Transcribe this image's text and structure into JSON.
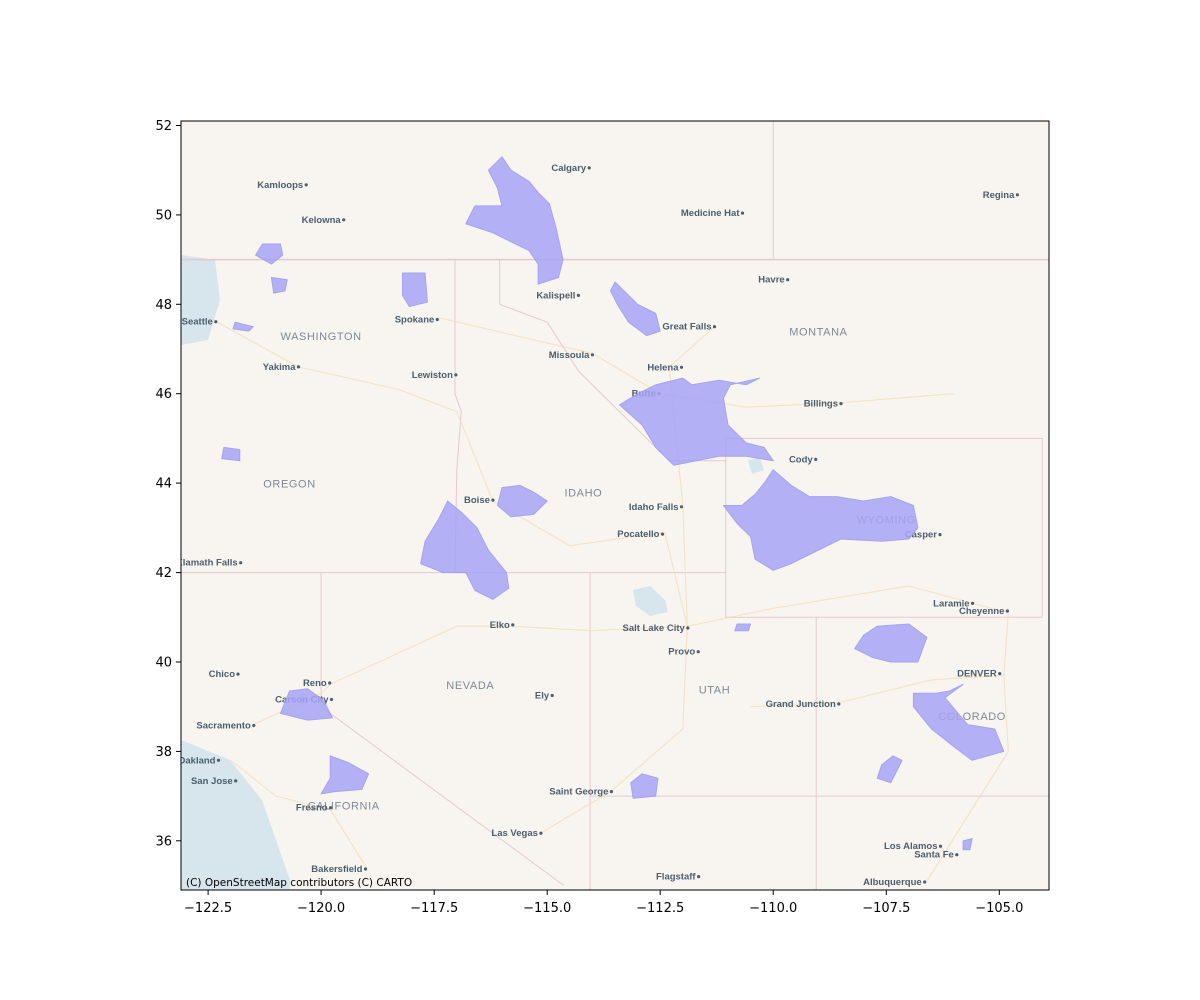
{
  "map": {
    "basemap": "CARTO Voyager (light)",
    "attribution": "(C) OpenStreetMap contributors (C) CARTO",
    "extent": {
      "lon": [
        -123.1,
        -103.9
      ],
      "lat": [
        34.9,
        52.1
      ]
    },
    "colors": {
      "land": "#f8f5f0",
      "water": "#d6e6ec",
      "border": "#e6c9cf",
      "road": "#f4dcb5",
      "polygon_fill": "#a7a5f6",
      "polygon_stroke": "#9896ee",
      "city_dot": "#4b5d6e"
    },
    "x_ticks": [
      {
        "value": -122.5,
        "label": "−122.5"
      },
      {
        "value": -120.0,
        "label": "−120.0"
      },
      {
        "value": -117.5,
        "label": "−117.5"
      },
      {
        "value": -115.0,
        "label": "−115.0"
      },
      {
        "value": -112.5,
        "label": "−112.5"
      },
      {
        "value": -110.0,
        "label": "−110.0"
      },
      {
        "value": -107.5,
        "label": "−107.5"
      },
      {
        "value": -105.0,
        "label": "−105.0"
      }
    ],
    "y_ticks": [
      {
        "value": 36,
        "label": "36"
      },
      {
        "value": 38,
        "label": "38"
      },
      {
        "value": 40,
        "label": "40"
      },
      {
        "value": 42,
        "label": "42"
      },
      {
        "value": 44,
        "label": "44"
      },
      {
        "value": 46,
        "label": "46"
      },
      {
        "value": 48,
        "label": "48"
      },
      {
        "value": 50,
        "label": "50"
      },
      {
        "value": 52,
        "label": "52"
      }
    ],
    "regions": [
      {
        "name": "WASHINGTON",
        "lon": -120.0,
        "lat": 47.2
      },
      {
        "name": "OREGON",
        "lon": -120.7,
        "lat": 43.9
      },
      {
        "name": "IDAHO",
        "lon": -114.2,
        "lat": 43.7
      },
      {
        "name": "MONTANA",
        "lon": -109.0,
        "lat": 47.3
      },
      {
        "name": "WYOMING",
        "lon": -107.5,
        "lat": 43.1
      },
      {
        "name": "NEVADA",
        "lon": -116.7,
        "lat": 39.4
      },
      {
        "name": "UTAH",
        "lon": -111.3,
        "lat": 39.3
      },
      {
        "name": "COLORADO",
        "lon": -105.6,
        "lat": 38.7
      },
      {
        "name": "CALIFORNIA",
        "lon": -119.5,
        "lat": 36.7
      }
    ],
    "cities": [
      {
        "name": "Calgary",
        "lon": -114.07,
        "lat": 51.05
      },
      {
        "name": "Kamloops",
        "lon": -120.33,
        "lat": 50.67
      },
      {
        "name": "Kelowna",
        "lon": -119.5,
        "lat": 49.89
      },
      {
        "name": "Medicine Hat",
        "lon": -110.68,
        "lat": 50.04
      },
      {
        "name": "Regina",
        "lon": -104.6,
        "lat": 50.45
      },
      {
        "name": "Havre",
        "lon": -109.68,
        "lat": 48.55
      },
      {
        "name": "Kalispell",
        "lon": -114.31,
        "lat": 48.2
      },
      {
        "name": "Great Falls",
        "lon": -111.3,
        "lat": 47.5
      },
      {
        "name": "Seattle",
        "lon": -122.33,
        "lat": 47.61
      },
      {
        "name": "Spokane",
        "lon": -117.43,
        "lat": 47.66
      },
      {
        "name": "Missoula",
        "lon": -114.0,
        "lat": 46.87
      },
      {
        "name": "Helena",
        "lon": -112.03,
        "lat": 46.59
      },
      {
        "name": "Yakima",
        "lon": -120.5,
        "lat": 46.6
      },
      {
        "name": "Lewiston",
        "lon": -117.02,
        "lat": 46.42
      },
      {
        "name": "Butte",
        "lon": -112.53,
        "lat": 46.0
      },
      {
        "name": "Billings",
        "lon": -108.5,
        "lat": 45.78
      },
      {
        "name": "Cody",
        "lon": -109.06,
        "lat": 44.53
      },
      {
        "name": "Boise",
        "lon": -116.2,
        "lat": 43.62
      },
      {
        "name": "Idaho Falls",
        "lon": -112.03,
        "lat": 43.47
      },
      {
        "name": "Pocatello",
        "lon": -112.45,
        "lat": 42.86
      },
      {
        "name": "Casper",
        "lon": -106.31,
        "lat": 42.85
      },
      {
        "name": "Klamath Falls",
        "lon": -121.78,
        "lat": 42.22
      },
      {
        "name": "Laramie",
        "lon": -105.59,
        "lat": 41.31
      },
      {
        "name": "Cheyenne",
        "lon": -104.82,
        "lat": 41.14
      },
      {
        "name": "Elko",
        "lon": -115.76,
        "lat": 40.83
      },
      {
        "name": "Salt Lake City",
        "lon": -111.89,
        "lat": 40.76
      },
      {
        "name": "Provo",
        "lon": -111.66,
        "lat": 40.23
      },
      {
        "name": "Chico",
        "lon": -121.84,
        "lat": 39.73
      },
      {
        "name": "Reno",
        "lon": -119.81,
        "lat": 39.53
      },
      {
        "name": "Carson City",
        "lon": -119.77,
        "lat": 39.16
      },
      {
        "name": "Ely",
        "lon": -114.89,
        "lat": 39.25
      },
      {
        "name": "DENVER",
        "lon": -104.99,
        "lat": 39.74
      },
      {
        "name": "Grand Junction",
        "lon": -108.55,
        "lat": 39.06
      },
      {
        "name": "Sacramento",
        "lon": -121.49,
        "lat": 38.58
      },
      {
        "name": "Oakland",
        "lon": -122.27,
        "lat": 37.8
      },
      {
        "name": "San Jose",
        "lon": -121.89,
        "lat": 37.34
      },
      {
        "name": "Saint George",
        "lon": -113.58,
        "lat": 37.1
      },
      {
        "name": "Fresno",
        "lon": -119.79,
        "lat": 36.74
      },
      {
        "name": "Las Vegas",
        "lon": -115.14,
        "lat": 36.17
      },
      {
        "name": "Bakersfield",
        "lon": -119.02,
        "lat": 35.37
      },
      {
        "name": "Los Alamos",
        "lon": -106.3,
        "lat": 35.88
      },
      {
        "name": "Santa Fe",
        "lon": -105.94,
        "lat": 35.69
      },
      {
        "name": "Flagstaff",
        "lon": -111.65,
        "lat": 35.2
      },
      {
        "name": "Albuquerque",
        "lon": -106.65,
        "lat": 35.08
      }
    ],
    "polygons": [
      {
        "name": "glacier-region",
        "points": [
          [
            -116.0,
            51.3
          ],
          [
            -115.8,
            51.0
          ],
          [
            -115.4,
            50.75
          ],
          [
            -115.2,
            50.5
          ],
          [
            -114.95,
            50.25
          ],
          [
            -114.8,
            49.7
          ],
          [
            -114.65,
            49.0
          ],
          [
            -114.75,
            48.6
          ],
          [
            -115.2,
            48.45
          ],
          [
            -115.2,
            48.9
          ],
          [
            -115.4,
            49.2
          ],
          [
            -116.2,
            49.6
          ],
          [
            -116.8,
            49.8
          ],
          [
            -116.6,
            50.2
          ],
          [
            -116.0,
            50.2
          ],
          [
            -116.1,
            50.6
          ],
          [
            -116.3,
            51.0
          ]
        ]
      },
      {
        "name": "north-cascades",
        "points": [
          [
            -121.3,
            49.35
          ],
          [
            -120.9,
            49.35
          ],
          [
            -120.85,
            49.1
          ],
          [
            -121.1,
            48.9
          ],
          [
            -121.45,
            49.1
          ]
        ]
      },
      {
        "name": "cascades-small",
        "points": [
          [
            -121.1,
            48.6
          ],
          [
            -120.75,
            48.55
          ],
          [
            -120.8,
            48.3
          ],
          [
            -121.05,
            48.25
          ]
        ]
      },
      {
        "name": "okanogan",
        "points": [
          [
            -118.2,
            48.7
          ],
          [
            -117.7,
            48.7
          ],
          [
            -117.65,
            48.05
          ],
          [
            -118.05,
            47.95
          ],
          [
            -118.2,
            48.2
          ]
        ]
      },
      {
        "name": "rainier",
        "points": [
          [
            -121.9,
            47.6
          ],
          [
            -121.5,
            47.5
          ],
          [
            -121.6,
            47.4
          ],
          [
            -121.95,
            47.45
          ]
        ]
      },
      {
        "name": "bob-marshall",
        "points": [
          [
            -113.5,
            48.5
          ],
          [
            -113.3,
            48.3
          ],
          [
            -113.0,
            48.0
          ],
          [
            -112.6,
            47.8
          ],
          [
            -112.5,
            47.4
          ],
          [
            -112.8,
            47.3
          ],
          [
            -113.2,
            47.6
          ],
          [
            -113.45,
            48.0
          ],
          [
            -113.6,
            48.3
          ]
        ]
      },
      {
        "name": "greater-yellowstone-north",
        "points": [
          [
            -112.6,
            46.2
          ],
          [
            -112.0,
            46.35
          ],
          [
            -111.8,
            46.2
          ],
          [
            -111.2,
            46.3
          ],
          [
            -110.6,
            46.2
          ],
          [
            -110.3,
            46.35
          ],
          [
            -110.95,
            46.2
          ],
          [
            -111.1,
            45.9
          ],
          [
            -111.0,
            45.3
          ],
          [
            -110.6,
            44.9
          ],
          [
            -110.2,
            44.8
          ],
          [
            -110.0,
            44.5
          ],
          [
            -110.6,
            44.6
          ],
          [
            -111.2,
            44.6
          ],
          [
            -112.2,
            44.4
          ],
          [
            -112.6,
            44.8
          ],
          [
            -112.9,
            45.3
          ],
          [
            -113.4,
            45.75
          ],
          [
            -113.0,
            46.0
          ]
        ]
      },
      {
        "name": "wind-river-absaroka",
        "points": [
          [
            -110.0,
            44.3
          ],
          [
            -109.6,
            43.95
          ],
          [
            -109.2,
            43.7
          ],
          [
            -108.6,
            43.7
          ],
          [
            -108.0,
            43.6
          ],
          [
            -107.4,
            43.7
          ],
          [
            -106.9,
            43.5
          ],
          [
            -106.8,
            43.0
          ],
          [
            -107.0,
            42.75
          ],
          [
            -107.6,
            42.7
          ],
          [
            -108.5,
            42.75
          ],
          [
            -109.0,
            42.5
          ],
          [
            -109.6,
            42.2
          ],
          [
            -110.0,
            42.05
          ],
          [
            -110.4,
            42.3
          ],
          [
            -110.5,
            42.8
          ],
          [
            -110.8,
            43.1
          ],
          [
            -111.1,
            43.5
          ],
          [
            -110.7,
            43.5
          ],
          [
            -110.4,
            43.75
          ],
          [
            -110.2,
            44.0
          ]
        ]
      },
      {
        "name": "sawtooth",
        "points": [
          [
            -116.0,
            43.9
          ],
          [
            -115.6,
            43.95
          ],
          [
            -115.3,
            43.8
          ],
          [
            -115.0,
            43.6
          ],
          [
            -115.3,
            43.3
          ],
          [
            -115.8,
            43.25
          ],
          [
            -116.1,
            43.5
          ]
        ]
      },
      {
        "name": "owyhee",
        "points": [
          [
            -117.2,
            43.6
          ],
          [
            -116.9,
            43.35
          ],
          [
            -116.55,
            43.0
          ],
          [
            -116.3,
            42.5
          ],
          [
            -115.9,
            42.0
          ],
          [
            -115.85,
            41.65
          ],
          [
            -116.2,
            41.4
          ],
          [
            -116.6,
            41.6
          ],
          [
            -116.8,
            42.0
          ],
          [
            -117.3,
            42.0
          ],
          [
            -117.8,
            42.2
          ],
          [
            -117.7,
            42.7
          ],
          [
            -117.4,
            43.2
          ]
        ]
      },
      {
        "name": "hood-region",
        "points": [
          [
            -122.15,
            44.8
          ],
          [
            -121.8,
            44.75
          ],
          [
            -121.8,
            44.5
          ],
          [
            -122.2,
            44.55
          ]
        ]
      },
      {
        "name": "uinta-small",
        "points": [
          [
            -110.8,
            40.85
          ],
          [
            -110.5,
            40.85
          ],
          [
            -110.55,
            40.7
          ],
          [
            -110.85,
            40.7
          ]
        ]
      },
      {
        "name": "park-range",
        "points": [
          [
            -107.7,
            40.8
          ],
          [
            -107.0,
            40.85
          ],
          [
            -106.6,
            40.55
          ],
          [
            -106.8,
            40.0
          ],
          [
            -107.4,
            40.0
          ],
          [
            -107.8,
            40.1
          ],
          [
            -108.2,
            40.3
          ],
          [
            -108.0,
            40.6
          ]
        ]
      },
      {
        "name": "collegiate",
        "points": [
          [
            -106.1,
            39.35
          ],
          [
            -105.8,
            39.5
          ],
          [
            -106.2,
            39.2
          ],
          [
            -105.7,
            38.6
          ],
          [
            -105.1,
            38.5
          ],
          [
            -104.9,
            38.0
          ],
          [
            -105.6,
            37.8
          ],
          [
            -106.0,
            38.1
          ],
          [
            -106.5,
            38.5
          ],
          [
            -106.9,
            39.0
          ],
          [
            -106.9,
            39.3
          ],
          [
            -106.4,
            39.3
          ]
        ]
      },
      {
        "name": "san-juan-small",
        "points": [
          [
            -107.35,
            37.9
          ],
          [
            -107.15,
            37.8
          ],
          [
            -107.4,
            37.3
          ],
          [
            -107.7,
            37.4
          ],
          [
            -107.6,
            37.7
          ]
        ]
      },
      {
        "name": "tahoe",
        "points": [
          [
            -120.7,
            39.35
          ],
          [
            -120.3,
            39.4
          ],
          [
            -119.95,
            39.15
          ],
          [
            -119.75,
            38.75
          ],
          [
            -120.3,
            38.7
          ],
          [
            -120.9,
            38.85
          ]
        ]
      },
      {
        "name": "yosemite",
        "points": [
          [
            -119.8,
            37.9
          ],
          [
            -119.4,
            37.75
          ],
          [
            -118.95,
            37.5
          ],
          [
            -119.1,
            37.15
          ],
          [
            -119.7,
            37.1
          ],
          [
            -120.0,
            37.05
          ],
          [
            -119.8,
            37.4
          ]
        ]
      },
      {
        "name": "zion-region",
        "points": [
          [
            -112.9,
            37.5
          ],
          [
            -112.55,
            37.4
          ],
          [
            -112.6,
            37.0
          ],
          [
            -113.1,
            36.95
          ],
          [
            -113.15,
            37.3
          ]
        ]
      },
      {
        "name": "sangre-small",
        "points": [
          [
            -105.8,
            36.0
          ],
          [
            -105.6,
            36.05
          ],
          [
            -105.65,
            35.8
          ],
          [
            -105.8,
            35.8
          ]
        ]
      }
    ]
  }
}
